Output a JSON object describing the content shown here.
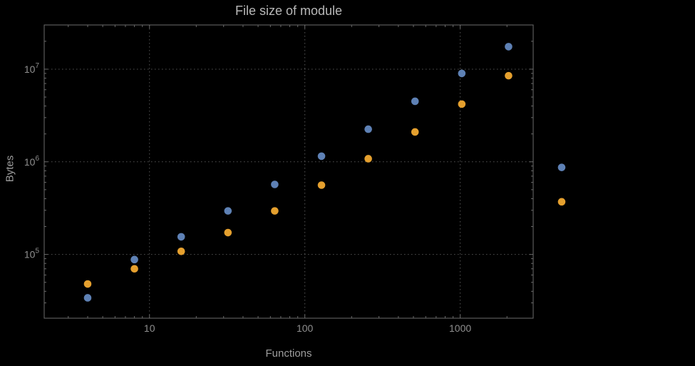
{
  "background_color": "#000000",
  "frame_color": "#6b6b6b",
  "grid_color": "#555555",
  "tick_label_color": "#8f8f8f",
  "chart_data": {
    "type": "scatter",
    "title": "File size of module",
    "xlabel": "Functions",
    "ylabel": "Bytes",
    "xscale": "log",
    "yscale": "log",
    "xlim": [
      2.1,
      2950
    ],
    "ylim": [
      20500,
      30000000
    ],
    "x_ticks": [
      10,
      100,
      1000
    ],
    "x_tick_labels": [
      "10",
      "100",
      "1000"
    ],
    "y_ticks": [
      100000,
      1000000,
      10000000
    ],
    "y_tick_labels": [
      "10^5",
      "10^6",
      "10^7"
    ],
    "grid": "dotted-at-major-ticks",
    "legend": "none",
    "frame": true,
    "series": [
      {
        "name": "series-blue",
        "color": "#5E81B5",
        "points": [
          [
            4,
            34000
          ],
          [
            8,
            88000
          ],
          [
            16,
            155000
          ],
          [
            32,
            295000
          ],
          [
            64,
            570000
          ],
          [
            128,
            1150000
          ],
          [
            256,
            2250000
          ],
          [
            512,
            4500000
          ],
          [
            1024,
            9000000
          ],
          [
            2048,
            17500000
          ],
          [
            4500,
            870000
          ]
        ]
      },
      {
        "name": "series-orange",
        "color": "#E5A02E",
        "points": [
          [
            4,
            48000
          ],
          [
            8,
            70000
          ],
          [
            16,
            108000
          ],
          [
            32,
            172000
          ],
          [
            64,
            295000
          ],
          [
            128,
            560000
          ],
          [
            256,
            1080000
          ],
          [
            512,
            2100000
          ],
          [
            1024,
            4200000
          ],
          [
            2048,
            8500000
          ],
          [
            4500,
            370000
          ]
        ]
      }
    ]
  }
}
